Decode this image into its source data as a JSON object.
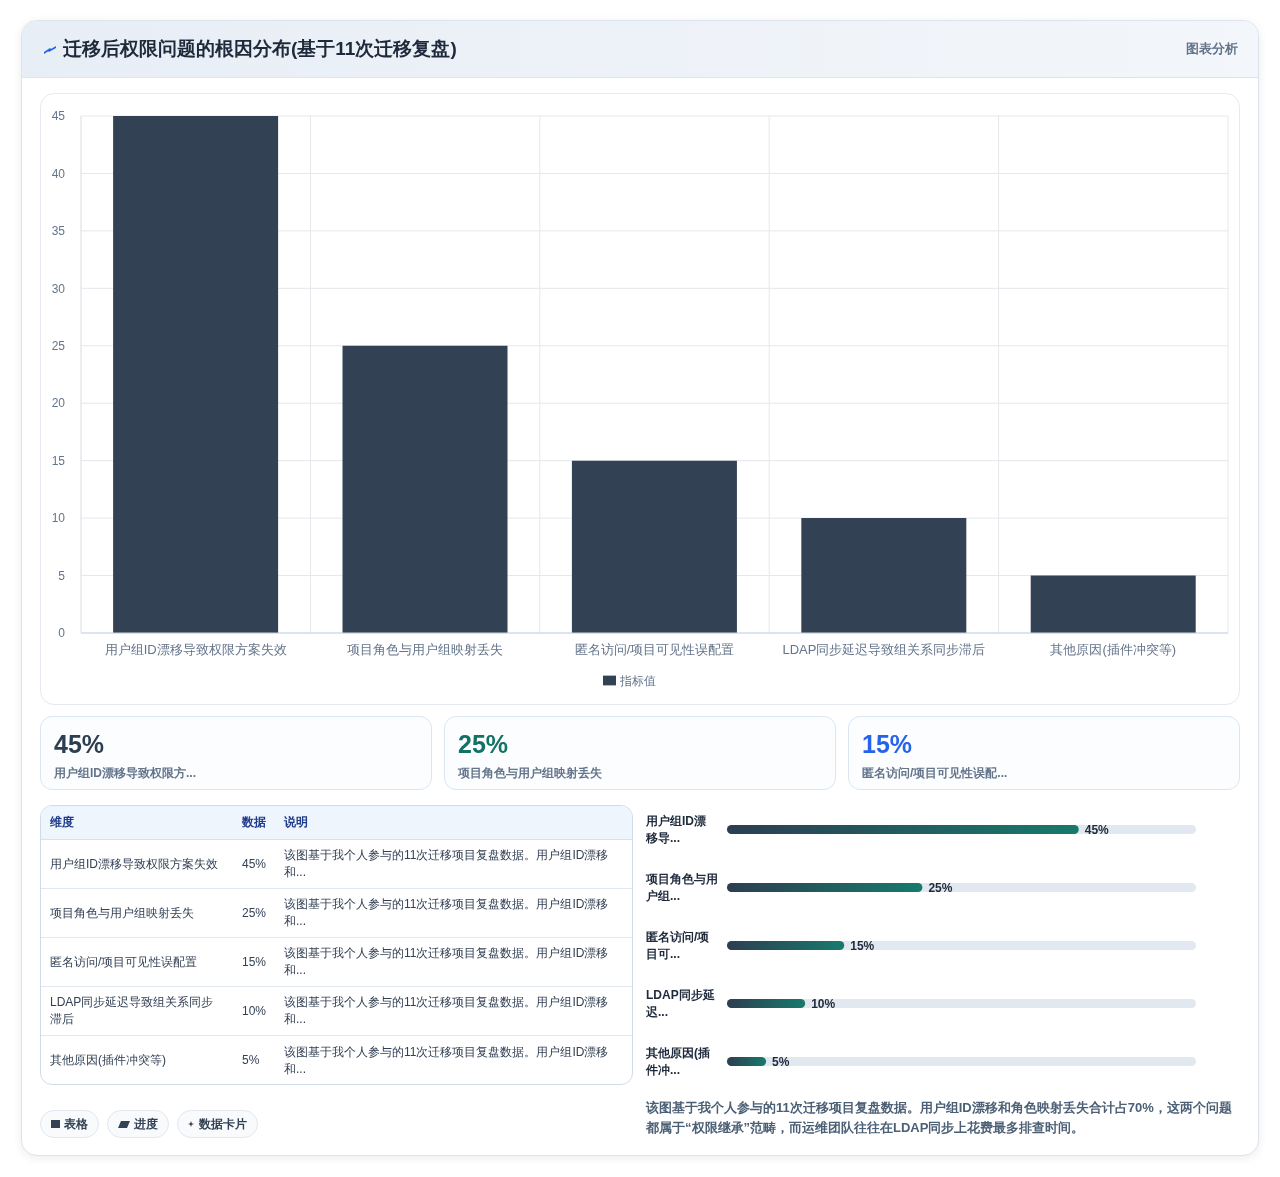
{
  "chart_data": [
    {
      "type": "bar",
      "title": "迁移后权限问题的根因分布(基于11次迁移复盘)",
      "categories": [
        "用户组ID漂移导致权限方案失效",
        "项目角色与用户组映射丢失",
        "匿名访问/项目可见性误配置",
        "LDAP同步延迟导致组关系同步滞后",
        "其他原因(插件冲突等)"
      ],
      "series": [
        {
          "name": "指标值",
          "color": "#334155",
          "values": [
            45,
            25,
            15,
            10,
            5
          ]
        }
      ],
      "ylim": [
        0,
        45
      ],
      "yticks": [
        0,
        5,
        10,
        15,
        20,
        25,
        30,
        35,
        40,
        45
      ],
      "grid": true,
      "legend": "bottom",
      "annotations": [
        "图表分析"
      ]
    },
    {
      "type": "other",
      "annotations": [
        "45%",
        "用户组ID漂移导致权限方...",
        "25%",
        "项目角色与用户组映射丢失",
        "15%",
        "匿名访问/项目可见性误配..."
      ]
    },
    {
      "type": "other",
      "annotations": [
        "维度",
        "数据",
        "说明",
        "用户组ID漂移导致权限方案失效",
        "45%",
        "该图基于我个人参与的11次迁移项目复盘数据。用户组ID漂移和...",
        "项目角色与用户组映射丢失",
        "25%",
        "该图基于我个人参与的11次迁移项目复盘数据。用户组ID漂移和...",
        "匿名访问/项目可见性误配置",
        "15%",
        "该图基于我个人参与的11次迁移项目复盘数据。用户组ID漂移和...",
        "LDAP同步延迟导致组关系同步滞后",
        "10%",
        "该图基于我个人参与的11次迁移项目复盘数据。用户组ID漂移和...",
        "其他原因(插件冲突等)",
        "5%",
        "该图基于我个人参与的11次迁移项目复盘数据。用户组ID漂移和..."
      ]
    },
    {
      "type": "bar",
      "orientation": "horizontal",
      "categories": [
        "用户组ID漂移导...",
        "项目角色与用户组...",
        "匿名访问/项目可...",
        "LDAP同步延迟...",
        "其他原因(插件冲..."
      ],
      "series": [
        {
          "color": "#177a6d",
          "values": [
            45,
            25,
            15,
            10,
            5
          ],
          "value_labels": [
            "45%",
            "25%",
            "15%",
            "10%",
            "5%"
          ]
        }
      ],
      "tick_labels": "y",
      "annotations": [
        "该图基于我个人参与的11次迁移项目复盘数据。用户组ID漂移和角色映射丢失合计占70%，这两个问题都属于“权限继承”范畴，而运维团队往往在LDAP同步上花费最多排查时间。"
      ]
    },
    {
      "type": "other",
      "annotations": [
        "表格",
        "进度",
        "数据卡片"
      ]
    }
  ]
}
